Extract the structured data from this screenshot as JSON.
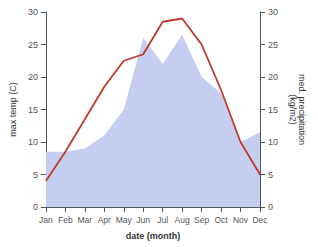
{
  "chart_data": {
    "type": "line",
    "categories": [
      "Jan",
      "Feb",
      "Mar",
      "Apr",
      "May",
      "Jun",
      "Jul",
      "Aug",
      "Sep",
      "Oct",
      "Nov",
      "Dec"
    ],
    "xlabel": "date (month)",
    "ylabel": "max temp (C)",
    "y2label": "med. precipitation\n(kg/m2)",
    "series": [
      {
        "type": "area",
        "color": "#c5cdf0",
        "axis": "y2",
        "values": [
          8.5,
          8.5,
          9.0,
          11.0,
          15.0,
          26.0,
          22.0,
          26.5,
          20.0,
          17.5,
          10.0,
          11.5
        ]
      },
      {
        "type": "line",
        "color": "#c0392b",
        "values": [
          4.0,
          8.5,
          13.5,
          18.5,
          22.5,
          23.5,
          28.5,
          29.0,
          25.0,
          18.0,
          10.0,
          5.0
        ]
      }
    ],
    "ylim": [
      0,
      30
    ],
    "yticks": [
      0,
      5,
      10,
      15,
      20,
      25,
      30
    ],
    "y2lim": [
      0,
      30
    ],
    "y2ticks": [
      0,
      5,
      10,
      15,
      20,
      25,
      30
    ],
    "grid": false
  }
}
